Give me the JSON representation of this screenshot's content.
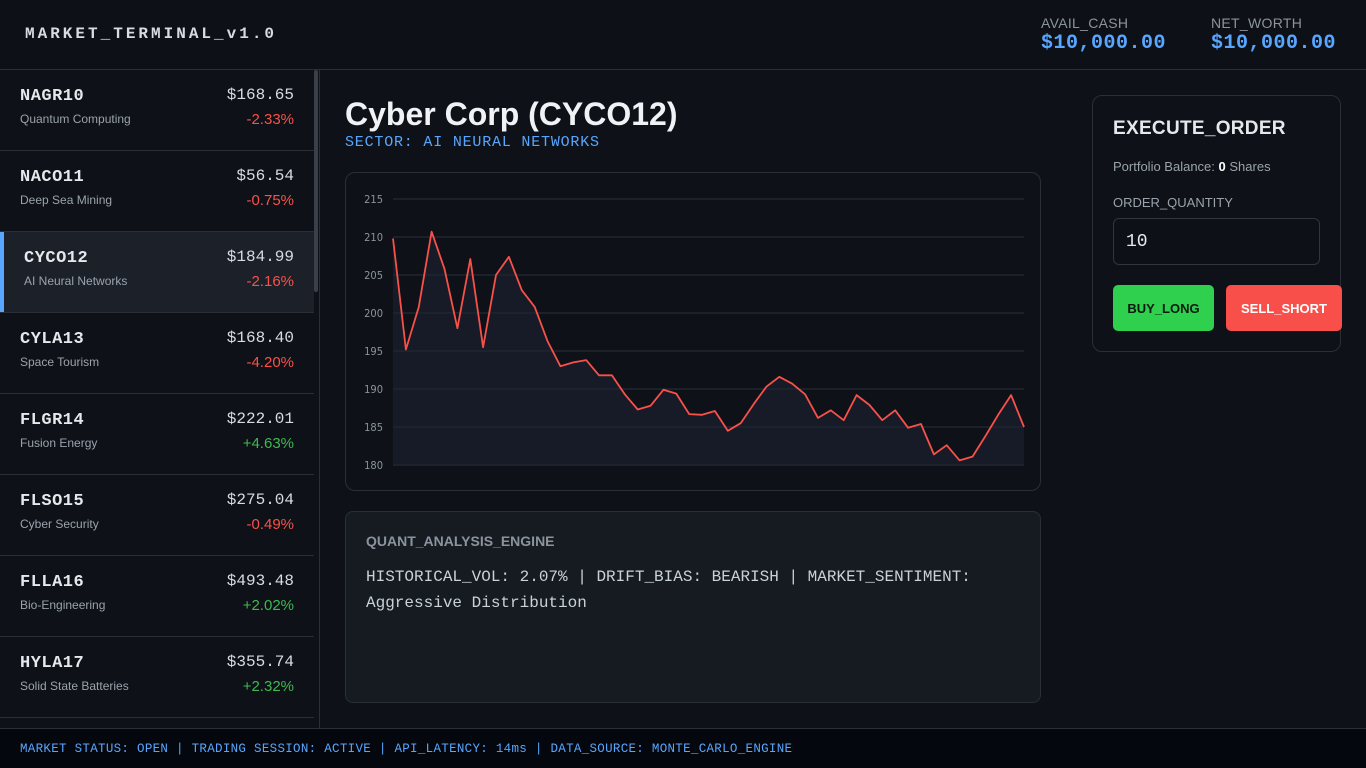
{
  "header": {
    "brand": "MARKET_TERMINAL_v1.0",
    "avail_cash_label": "AVAIL_CASH",
    "avail_cash_value": "$10,000.00",
    "net_worth_label": "NET_WORTH",
    "net_worth_value": "$10,000.00"
  },
  "sidebar": {
    "selected_index": 2,
    "items": [
      {
        "ticker": "NAGR10",
        "name": "Quantum Computing",
        "price": "$168.65",
        "change": "-2.33%",
        "direction": "down"
      },
      {
        "ticker": "NACO11",
        "name": "Deep Sea Mining",
        "price": "$56.54",
        "change": "-0.75%",
        "direction": "down"
      },
      {
        "ticker": "CYCO12",
        "name": "AI Neural Networks",
        "price": "$184.99",
        "change": "-2.16%",
        "direction": "down"
      },
      {
        "ticker": "CYLA13",
        "name": "Space Tourism",
        "price": "$168.40",
        "change": "-4.20%",
        "direction": "down"
      },
      {
        "ticker": "FLGR14",
        "name": "Fusion Energy",
        "price": "$222.01",
        "change": "+4.63%",
        "direction": "up"
      },
      {
        "ticker": "FLSO15",
        "name": "Cyber Security",
        "price": "$275.04",
        "change": "-0.49%",
        "direction": "down"
      },
      {
        "ticker": "FLLA16",
        "name": "Bio-Engineering",
        "price": "$493.48",
        "change": "+2.02%",
        "direction": "up"
      },
      {
        "ticker": "HYLA17",
        "name": "Solid State Batteries",
        "price": "$355.74",
        "change": "+2.32%",
        "direction": "up"
      }
    ]
  },
  "main": {
    "title": "Cyber Corp (CYCO12)",
    "sector": "SECTOR: AI NEURAL NETWORKS",
    "quant_title": "QUANT_ANALYSIS_ENGINE",
    "quant_body": "HISTORICAL_VOL: 2.07% | DRIFT_BIAS: BEARISH | MARKET_SENTIMENT: Aggressive Distribution"
  },
  "chart_data": {
    "type": "area",
    "title": "",
    "xlabel": "",
    "ylabel": "",
    "ylim": [
      180,
      215
    ],
    "yticks": [
      180,
      185,
      190,
      195,
      200,
      205,
      210,
      215
    ],
    "grid": true,
    "line_color": "#f85149",
    "series": [
      {
        "values": [
          209.8,
          195.2,
          200.8,
          210.7,
          205.8,
          198.0,
          207.1,
          195.5,
          205.0,
          207.4,
          203.0,
          200.8,
          196.3,
          193.0,
          193.5,
          193.8,
          191.8,
          191.8,
          189.3,
          187.3,
          187.8,
          189.9,
          189.4,
          186.7,
          186.6,
          187.1,
          184.5,
          185.5,
          188.0,
          190.3,
          191.6,
          190.7,
          189.3,
          186.2,
          187.2,
          185.9,
          189.2,
          187.9,
          185.9,
          187.2,
          184.9,
          185.4,
          181.4,
          182.6,
          180.6,
          181.1,
          183.8,
          186.6,
          189.2,
          185.0
        ]
      }
    ]
  },
  "order": {
    "title": "EXECUTE_ORDER",
    "balance_label": "Portfolio Balance:",
    "balance_shares": "0",
    "balance_unit": "Shares",
    "quantity_label": "ORDER_QUANTITY",
    "quantity_value": "10",
    "buy_label": "BUY_LONG",
    "sell_label": "SELL_SHORT",
    "colors": {
      "buy": "#2ed04e",
      "sell": "#f84f4a"
    }
  },
  "footer": {
    "status_text": "MARKET STATUS: OPEN | TRADING SESSION: ACTIVE | API_LATENCY: 14ms | DATA_SOURCE: MONTE_CARLO_ENGINE"
  },
  "colors": {
    "accent": "#58a6ff",
    "negative": "#f85149",
    "positive": "#3fb950"
  }
}
